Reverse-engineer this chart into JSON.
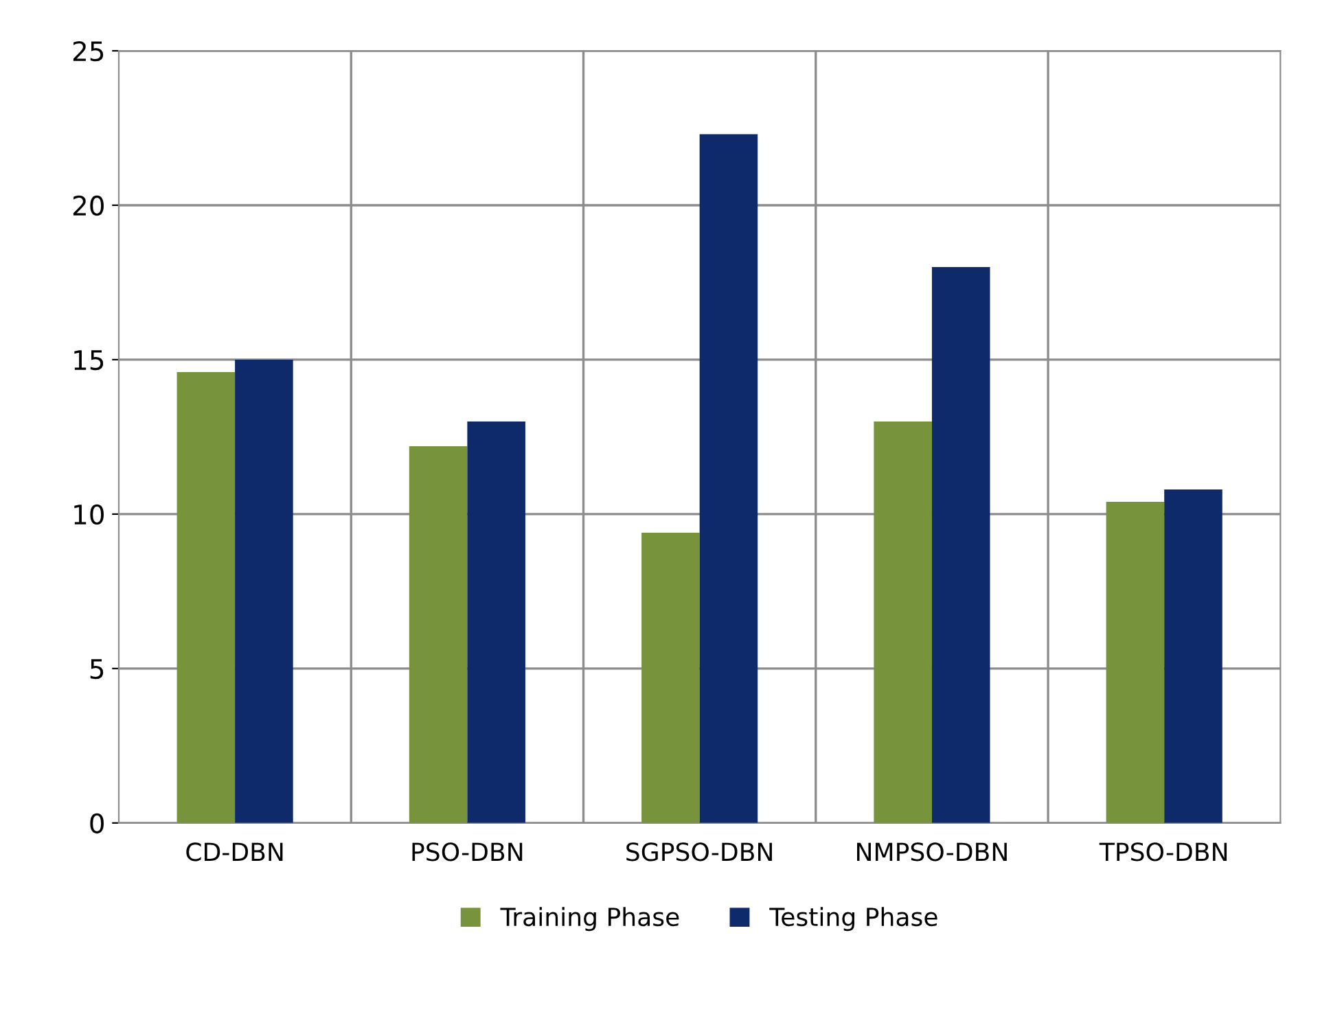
{
  "chart_data": {
    "type": "bar",
    "categories": [
      "CD-DBN",
      "PSO-DBN",
      "SGPSO-DBN",
      "NMPSO-DBN",
      "TPSO-DBN"
    ],
    "series": [
      {
        "name": "Training Phase",
        "color": "#77933c",
        "values": [
          14.6,
          12.2,
          9.4,
          13.0,
          10.4
        ]
      },
      {
        "name": "Testing Phase",
        "color": "#0f2a6b",
        "values": [
          15.0,
          13.0,
          22.3,
          18.0,
          10.8
        ]
      }
    ],
    "ylim": [
      0,
      25
    ],
    "yticks": [
      0,
      5,
      10,
      15,
      20,
      25
    ],
    "grid": true,
    "legend": "bottom"
  }
}
